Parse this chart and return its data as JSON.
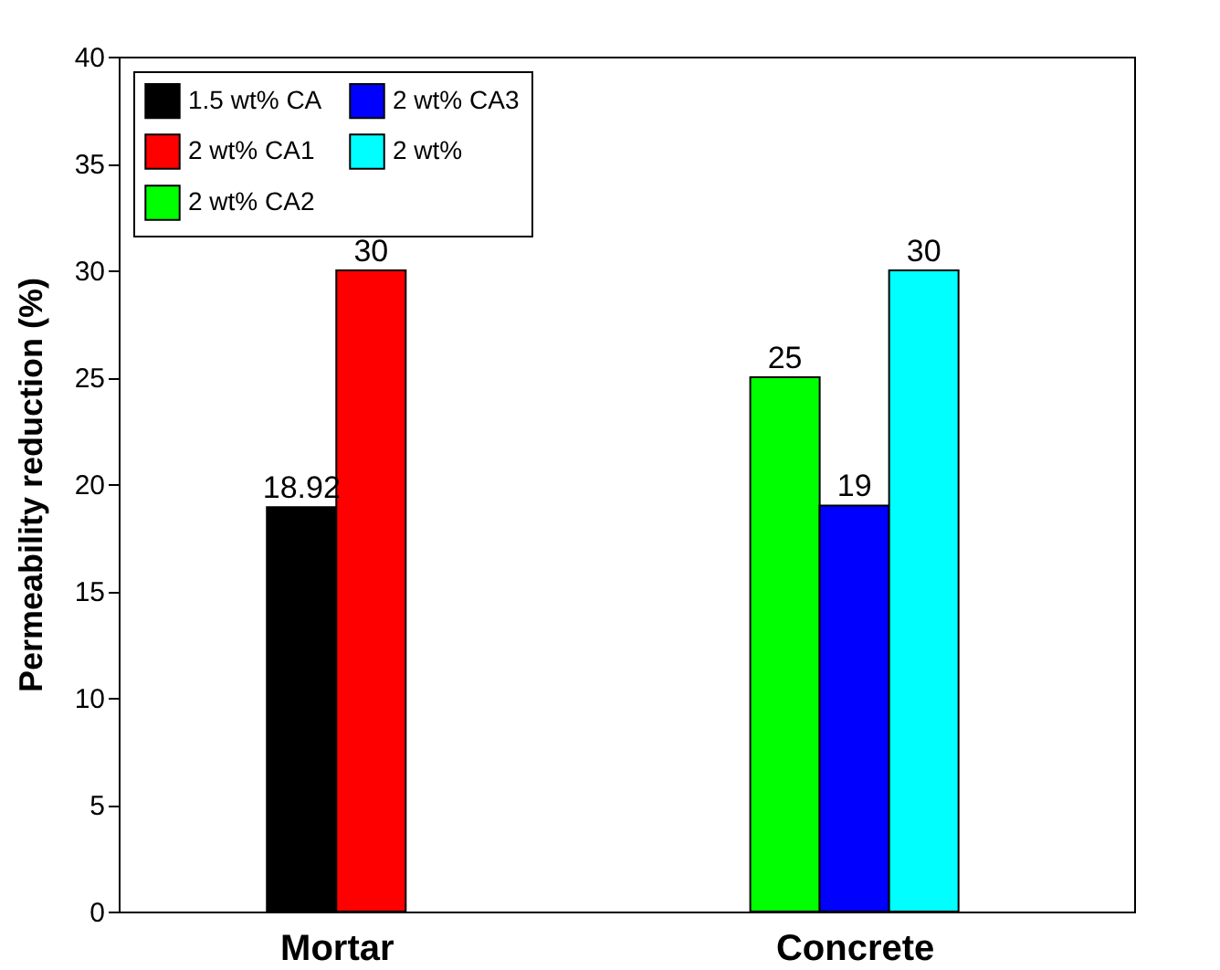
{
  "chart_data": {
    "type": "bar",
    "ylabel": "Permeability reduction (%)",
    "categories": [
      "Mortar",
      "Concrete"
    ],
    "series": [
      {
        "name": "1.5 wt% CA",
        "color": "#000000",
        "values": [
          18.92,
          null
        ]
      },
      {
        "name": "2 wt% CA1",
        "color": "#ff0000",
        "values": [
          30,
          null
        ]
      },
      {
        "name": "2 wt% CA2",
        "color": "#00ff00",
        "values": [
          null,
          25
        ]
      },
      {
        "name": "2 wt% CA3",
        "color": "#0000ff",
        "values": [
          null,
          19
        ]
      },
      {
        "name": "2 wt%",
        "color": "#00ffff",
        "values": [
          null,
          30
        ]
      }
    ],
    "ylim": [
      0,
      40
    ],
    "yticks": [
      0,
      5,
      10,
      15,
      20,
      25,
      30,
      35,
      40
    ],
    "data_labels": true,
    "legend": "top left",
    "grid": false
  }
}
